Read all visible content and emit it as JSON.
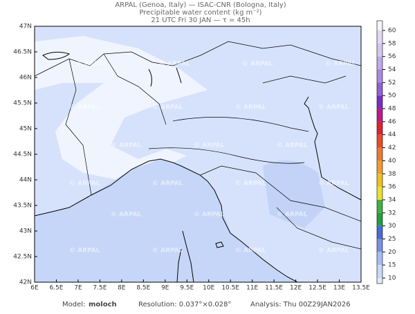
{
  "header": {
    "line1": "ARPAL (Genoa, Italy)  —  ISAC-CNR (Bologna, Italy)",
    "line2": "Precipitable water content (kg m⁻²)",
    "line3": "21 UTC Fri 30 JAN  —  τ = 45h"
  },
  "map": {
    "lat_labels": [
      "47N",
      "46.5N",
      "46N",
      "45.5N",
      "45N",
      "44.5N",
      "44N",
      "43.5N",
      "43N",
      "42.5N",
      "42N"
    ],
    "lon_labels": [
      "6E",
      "6.5E",
      "7E",
      "7.5E",
      "8E",
      "8.5E",
      "9E",
      "9.5E",
      "10E",
      "10.5E",
      "11E",
      "11.5E",
      "12E",
      "12.5E",
      "13E",
      "13.5E"
    ],
    "watermark": "© ARPAL"
  },
  "colorbar": {
    "labels": [
      "60",
      "58",
      "56",
      "54",
      "52",
      "50",
      "48",
      "46",
      "44",
      "42",
      "40",
      "38",
      "36",
      "34",
      "32",
      "30",
      "25",
      "20",
      "15",
      "10"
    ],
    "colors": [
      "#f4f4f8",
      "#e2d8f4",
      "#d4c6f0",
      "#c0a8ea",
      "#a888e0",
      "#9060d6",
      "#7a2cc4",
      "#c01888",
      "#e02030",
      "#e84c28",
      "#f07830",
      "#f09a30",
      "#f0c020",
      "#e8e030",
      "#40b040",
      "#20a040",
      "#4a6ad8",
      "#7890e4",
      "#a8bcf2",
      "#c8d8f8",
      "#e0eafc"
    ]
  },
  "footer": {
    "model_label": "Model:",
    "model": "moloch",
    "resolution": "Resolution: 0.037°×0.028°",
    "analysis": "Analysis: Thu 00Z29JAN2026"
  }
}
